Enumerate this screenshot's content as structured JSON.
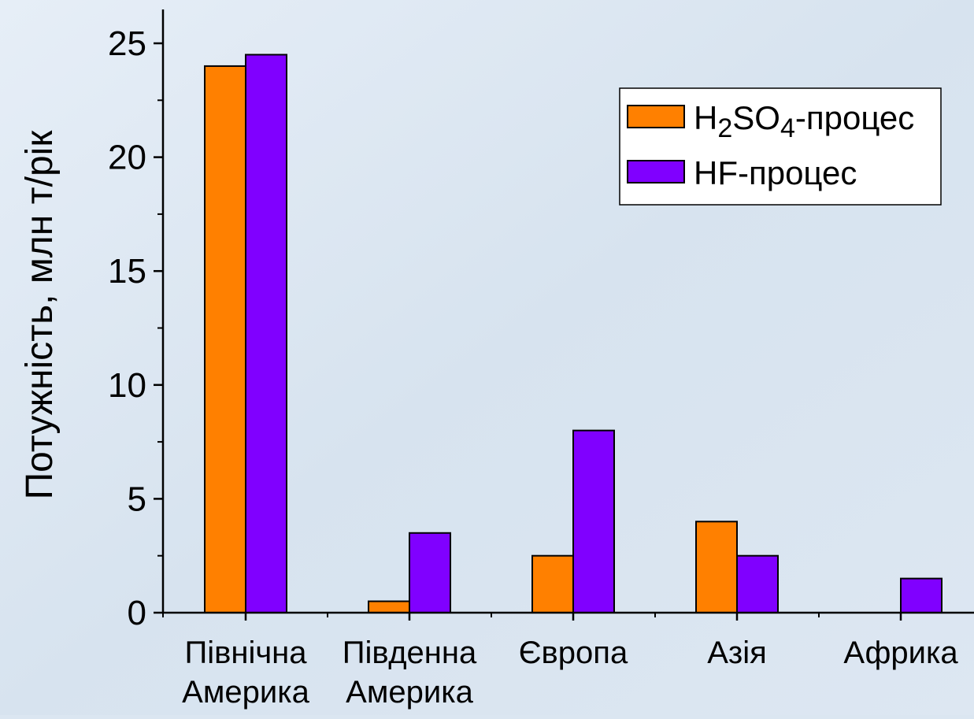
{
  "chart_data": {
    "type": "bar",
    "categories": [
      [
        "Північна",
        "Америка"
      ],
      [
        "Південна",
        "Америка"
      ],
      [
        "Європа"
      ],
      [
        "Азія"
      ],
      [
        "Африка"
      ]
    ],
    "series": [
      {
        "name": "H2SO4-процес",
        "name_parts": {
          "pre": "H",
          "sub1": "2",
          "mid": "SO",
          "sub2": "4",
          "post": "-процес"
        },
        "color": "#ff8000",
        "values": [
          24,
          0.5,
          2.5,
          4,
          0
        ]
      },
      {
        "name": "HF-процес",
        "color": "#8000ff",
        "values": [
          24.5,
          3.5,
          8,
          2.5,
          1.5
        ]
      }
    ],
    "title": "",
    "xlabel": "",
    "ylabel": "Потужність, млн т/рік",
    "ylim": [
      0,
      25
    ],
    "yticks": [
      0,
      5,
      10,
      15,
      20,
      25
    ],
    "grid": false,
    "legend": "top-right"
  }
}
